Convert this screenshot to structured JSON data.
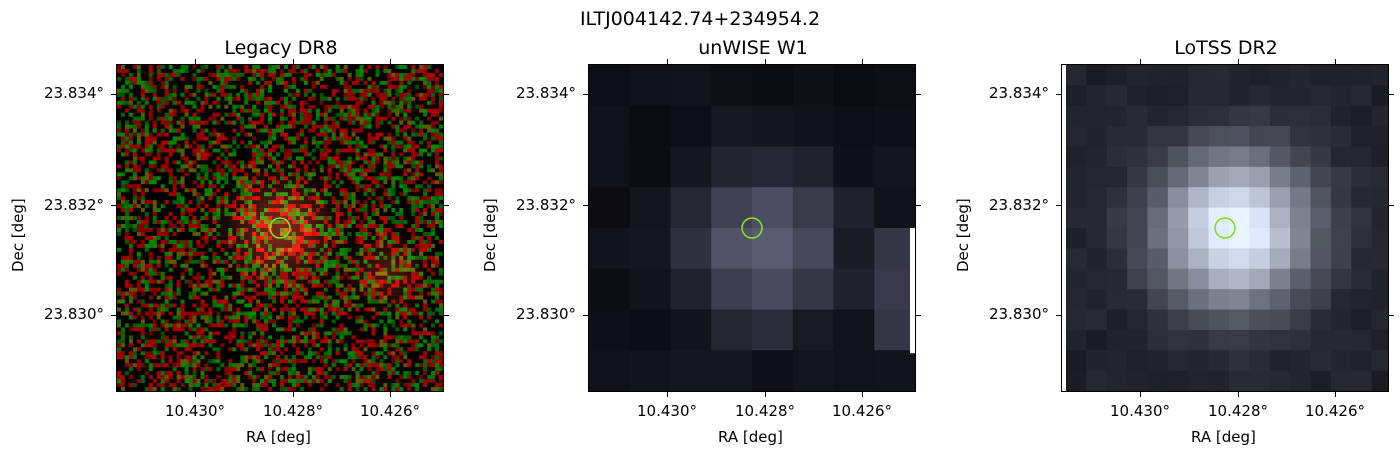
{
  "figure": {
    "title": "ILTJ004142.74+234954.2"
  },
  "panels": [
    {
      "title": "Legacy DR8",
      "xlabel": "RA [deg]",
      "ylabel": "Dec [deg]",
      "xticks": [
        "10.430°",
        "10.428°",
        "10.426°"
      ],
      "yticks": [
        "23.834°",
        "23.832°",
        "23.830°"
      ]
    },
    {
      "title": "unWISE W1",
      "xlabel": "RA [deg]",
      "ylabel": "Dec [deg]",
      "xticks": [
        "10.430°",
        "10.428°",
        "10.426°"
      ],
      "yticks": [
        "23.834°",
        "23.832°",
        "23.830°"
      ]
    },
    {
      "title": "LoTSS DR2",
      "xlabel": "RA [deg]",
      "ylabel": "Dec [deg]",
      "xticks": [
        "10.430°",
        "10.428°",
        "10.426°"
      ],
      "yticks": [
        "23.834°",
        "23.832°",
        "23.830°"
      ]
    }
  ],
  "marker": {
    "color": "#7fe21f",
    "shape": "circle-outline"
  }
}
